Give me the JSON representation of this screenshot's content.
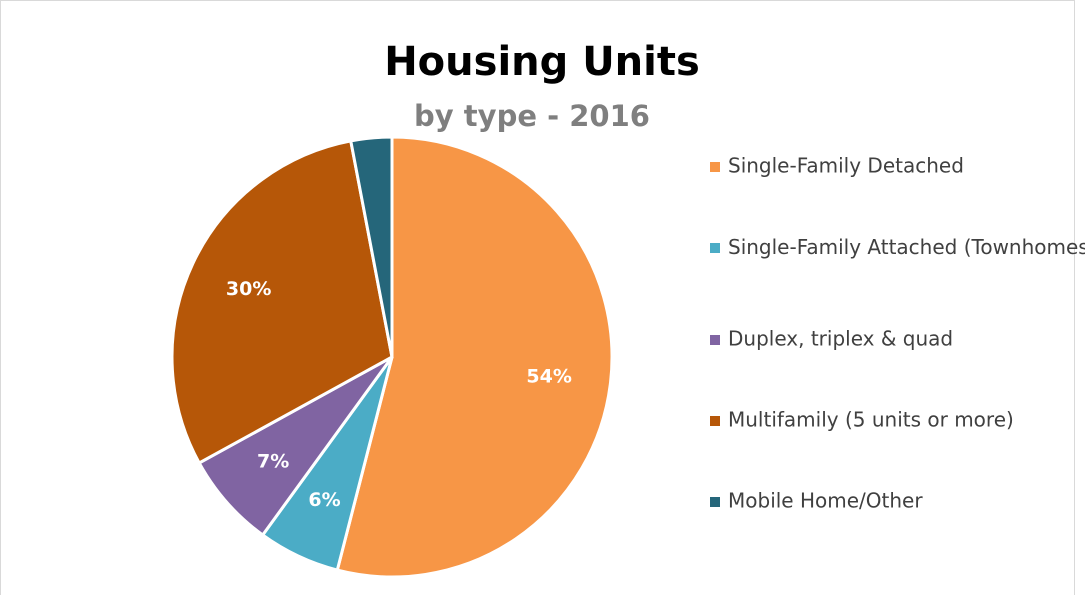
{
  "chart_data": {
    "type": "pie",
    "title": "Housing Units",
    "subtitle": "by type - 2016",
    "categories": [
      "Single-Family Detached",
      "Single-Family Attached (Townhomes)",
      "Duplex, triplex & quad",
      "Multifamily (5 units or more)",
      "Mobile Home/Other"
    ],
    "values": [
      54,
      6,
      7,
      30,
      3
    ],
    "value_labels": [
      "54%",
      "6%",
      "7%",
      "30%",
      null
    ],
    "colors": [
      "#f79646",
      "#4bacc6",
      "#8064a2",
      "#b65708",
      "#25667a"
    ],
    "legend": "right"
  }
}
